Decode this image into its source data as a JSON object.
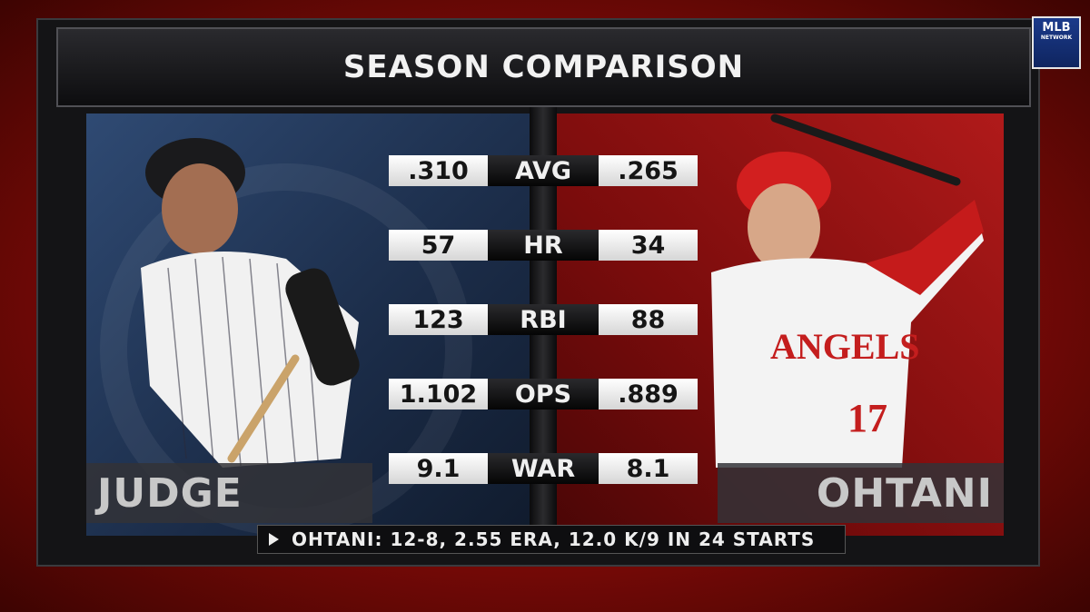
{
  "logo": {
    "line1": "MLB",
    "line2": "NETWORK"
  },
  "header": {
    "title": "SEASON COMPARISON"
  },
  "players": {
    "left": "JUDGE",
    "right": "OHTANI"
  },
  "table": {
    "rows": [
      [
        ".310",
        "AVG",
        ".265"
      ],
      [
        "57",
        "HR",
        "34"
      ],
      [
        "123",
        "RBI",
        "88"
      ],
      [
        "1.102",
        "OPS",
        ".889"
      ],
      [
        "9.1",
        "WAR",
        "8.1"
      ]
    ]
  },
  "footer": {
    "note": "OHTANI: 12-8, 2.55 ERA, 12.0 K/9 IN 24 STARTS"
  }
}
